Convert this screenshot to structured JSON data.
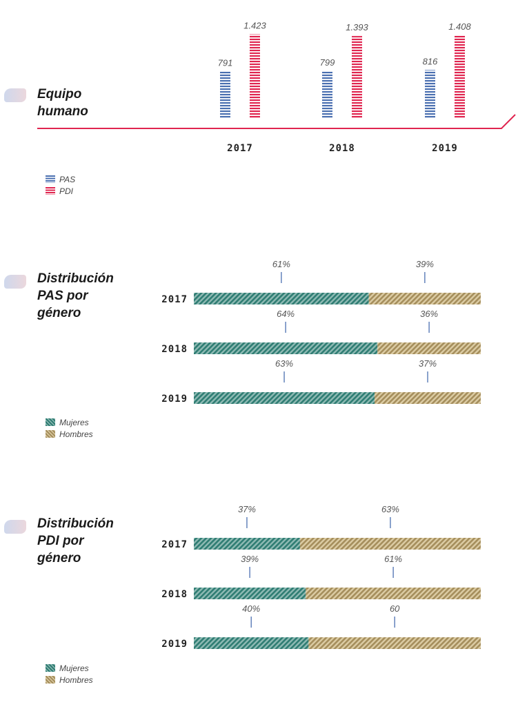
{
  "sections": {
    "equipo": {
      "title_line1": "Equipo",
      "title_line2": "humano"
    },
    "pas": {
      "title_line1": "Distribución",
      "title_line2": "PAS por",
      "title_line3": "género"
    },
    "pdi": {
      "title_line1": "Distribución",
      "title_line2": "PDI por",
      "title_line3": "género"
    }
  },
  "legends": {
    "staff": {
      "pas": "PAS",
      "pdi": "PDI"
    },
    "gender_pas": {
      "mujeres": "Mujeres",
      "hombres": "Hombres"
    },
    "gender_pdi": {
      "mujeres": "Mujeres",
      "hombres": "Hombres"
    }
  },
  "colors": {
    "pas": "#4a6fb0",
    "pdi": "#e0244f",
    "axis": "#e0244f",
    "mujeres": "#2f7d73",
    "hombres": "#a58e5c",
    "tick": "#4a6fb0"
  },
  "chart_data": [
    {
      "type": "bar",
      "categories": [
        "2017",
        "2018",
        "2019"
      ],
      "series": [
        {
          "name": "PAS",
          "values": [
            791,
            799,
            816
          ],
          "labels": [
            "791",
            "799",
            "816"
          ]
        },
        {
          "name": "PDI",
          "values": [
            1423,
            1393,
            1408
          ],
          "labels": [
            "1.423",
            "1.393",
            "1.408"
          ]
        }
      ],
      "legend": "bottom-left",
      "grid": false
    },
    {
      "type": "bar",
      "stacked": true,
      "orientation": "horizontal",
      "categories": [
        "2017",
        "2018",
        "2019"
      ],
      "series": [
        {
          "name": "Mujeres",
          "values": [
            61,
            64,
            63
          ],
          "labels": [
            "61%",
            "64%",
            "63%"
          ]
        },
        {
          "name": "Hombres",
          "values": [
            39,
            36,
            37
          ],
          "labels": [
            "39%",
            "36%",
            "37%"
          ]
        }
      ],
      "legend": "bottom-left"
    },
    {
      "type": "bar",
      "stacked": true,
      "orientation": "horizontal",
      "categories": [
        "2017",
        "2018",
        "2019"
      ],
      "series": [
        {
          "name": "Mujeres",
          "values": [
            37,
            39,
            40
          ],
          "labels": [
            "37%",
            "39%",
            "40%"
          ]
        },
        {
          "name": "Hombres",
          "values": [
            63,
            61,
            60
          ],
          "labels": [
            "63%",
            "61%",
            "60"
          ]
        }
      ],
      "legend": "bottom-left"
    }
  ]
}
